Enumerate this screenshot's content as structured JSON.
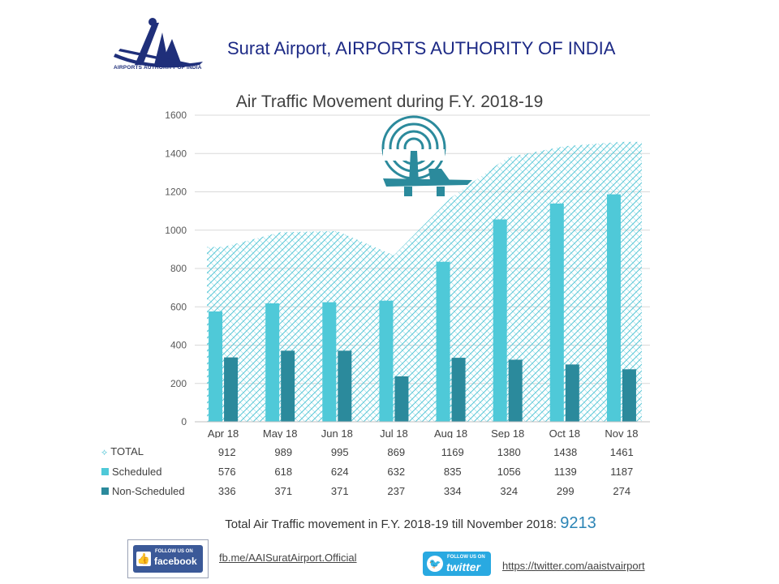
{
  "header": {
    "title": "Surat Airport,  AIRPORTS AUTHORITY OF INDIA",
    "logo_text": "AIRPORTS AUTHORITY OF INDIA"
  },
  "chart_data": {
    "type": "bar",
    "title": "Air Traffic Movement during F.Y. 2018-19",
    "categories": [
      "Apr 18",
      "May 18",
      "Jun 18",
      "Jul 18",
      "Aug 18",
      "Sep 18",
      "Oct 18",
      "Nov 18"
    ],
    "ylim": [
      0,
      1600
    ],
    "yticks": [
      0,
      200,
      400,
      600,
      800,
      1000,
      1200,
      1400,
      1600
    ],
    "grid": true,
    "series": [
      {
        "name": "TOTAL",
        "kind": "area",
        "values": [
          912,
          989,
          995,
          869,
          1169,
          1380,
          1438,
          1461
        ],
        "color": "#5bc8d8"
      },
      {
        "name": "Scheduled",
        "kind": "bar",
        "values": [
          576,
          618,
          624,
          632,
          835,
          1056,
          1139,
          1187
        ],
        "color": "#4fc9d8"
      },
      {
        "name": "Non-Scheduled",
        "kind": "bar",
        "values": [
          336,
          371,
          371,
          237,
          334,
          324,
          299,
          274
        ],
        "color": "#2b8a9c"
      }
    ],
    "table": true
  },
  "summary": {
    "label": "Total Air Traffic movement in F.Y. 2018-19 till November 2018: ",
    "value": "9213"
  },
  "social": {
    "fb_small": "FOLLOW US ON",
    "fb_big": "facebook",
    "fb_link": "fb.me/AAISuratAirport.Official",
    "tw_small": "FOLLOW US ON",
    "tw_big": "twitter",
    "tw_link": "https://twitter.com/aaistvairport"
  },
  "colors": {
    "brand_blue": "#1d2a86",
    "accent": "#2b84b5",
    "scheduled": "#4fc9d8",
    "non_scheduled": "#2b8a9c"
  }
}
